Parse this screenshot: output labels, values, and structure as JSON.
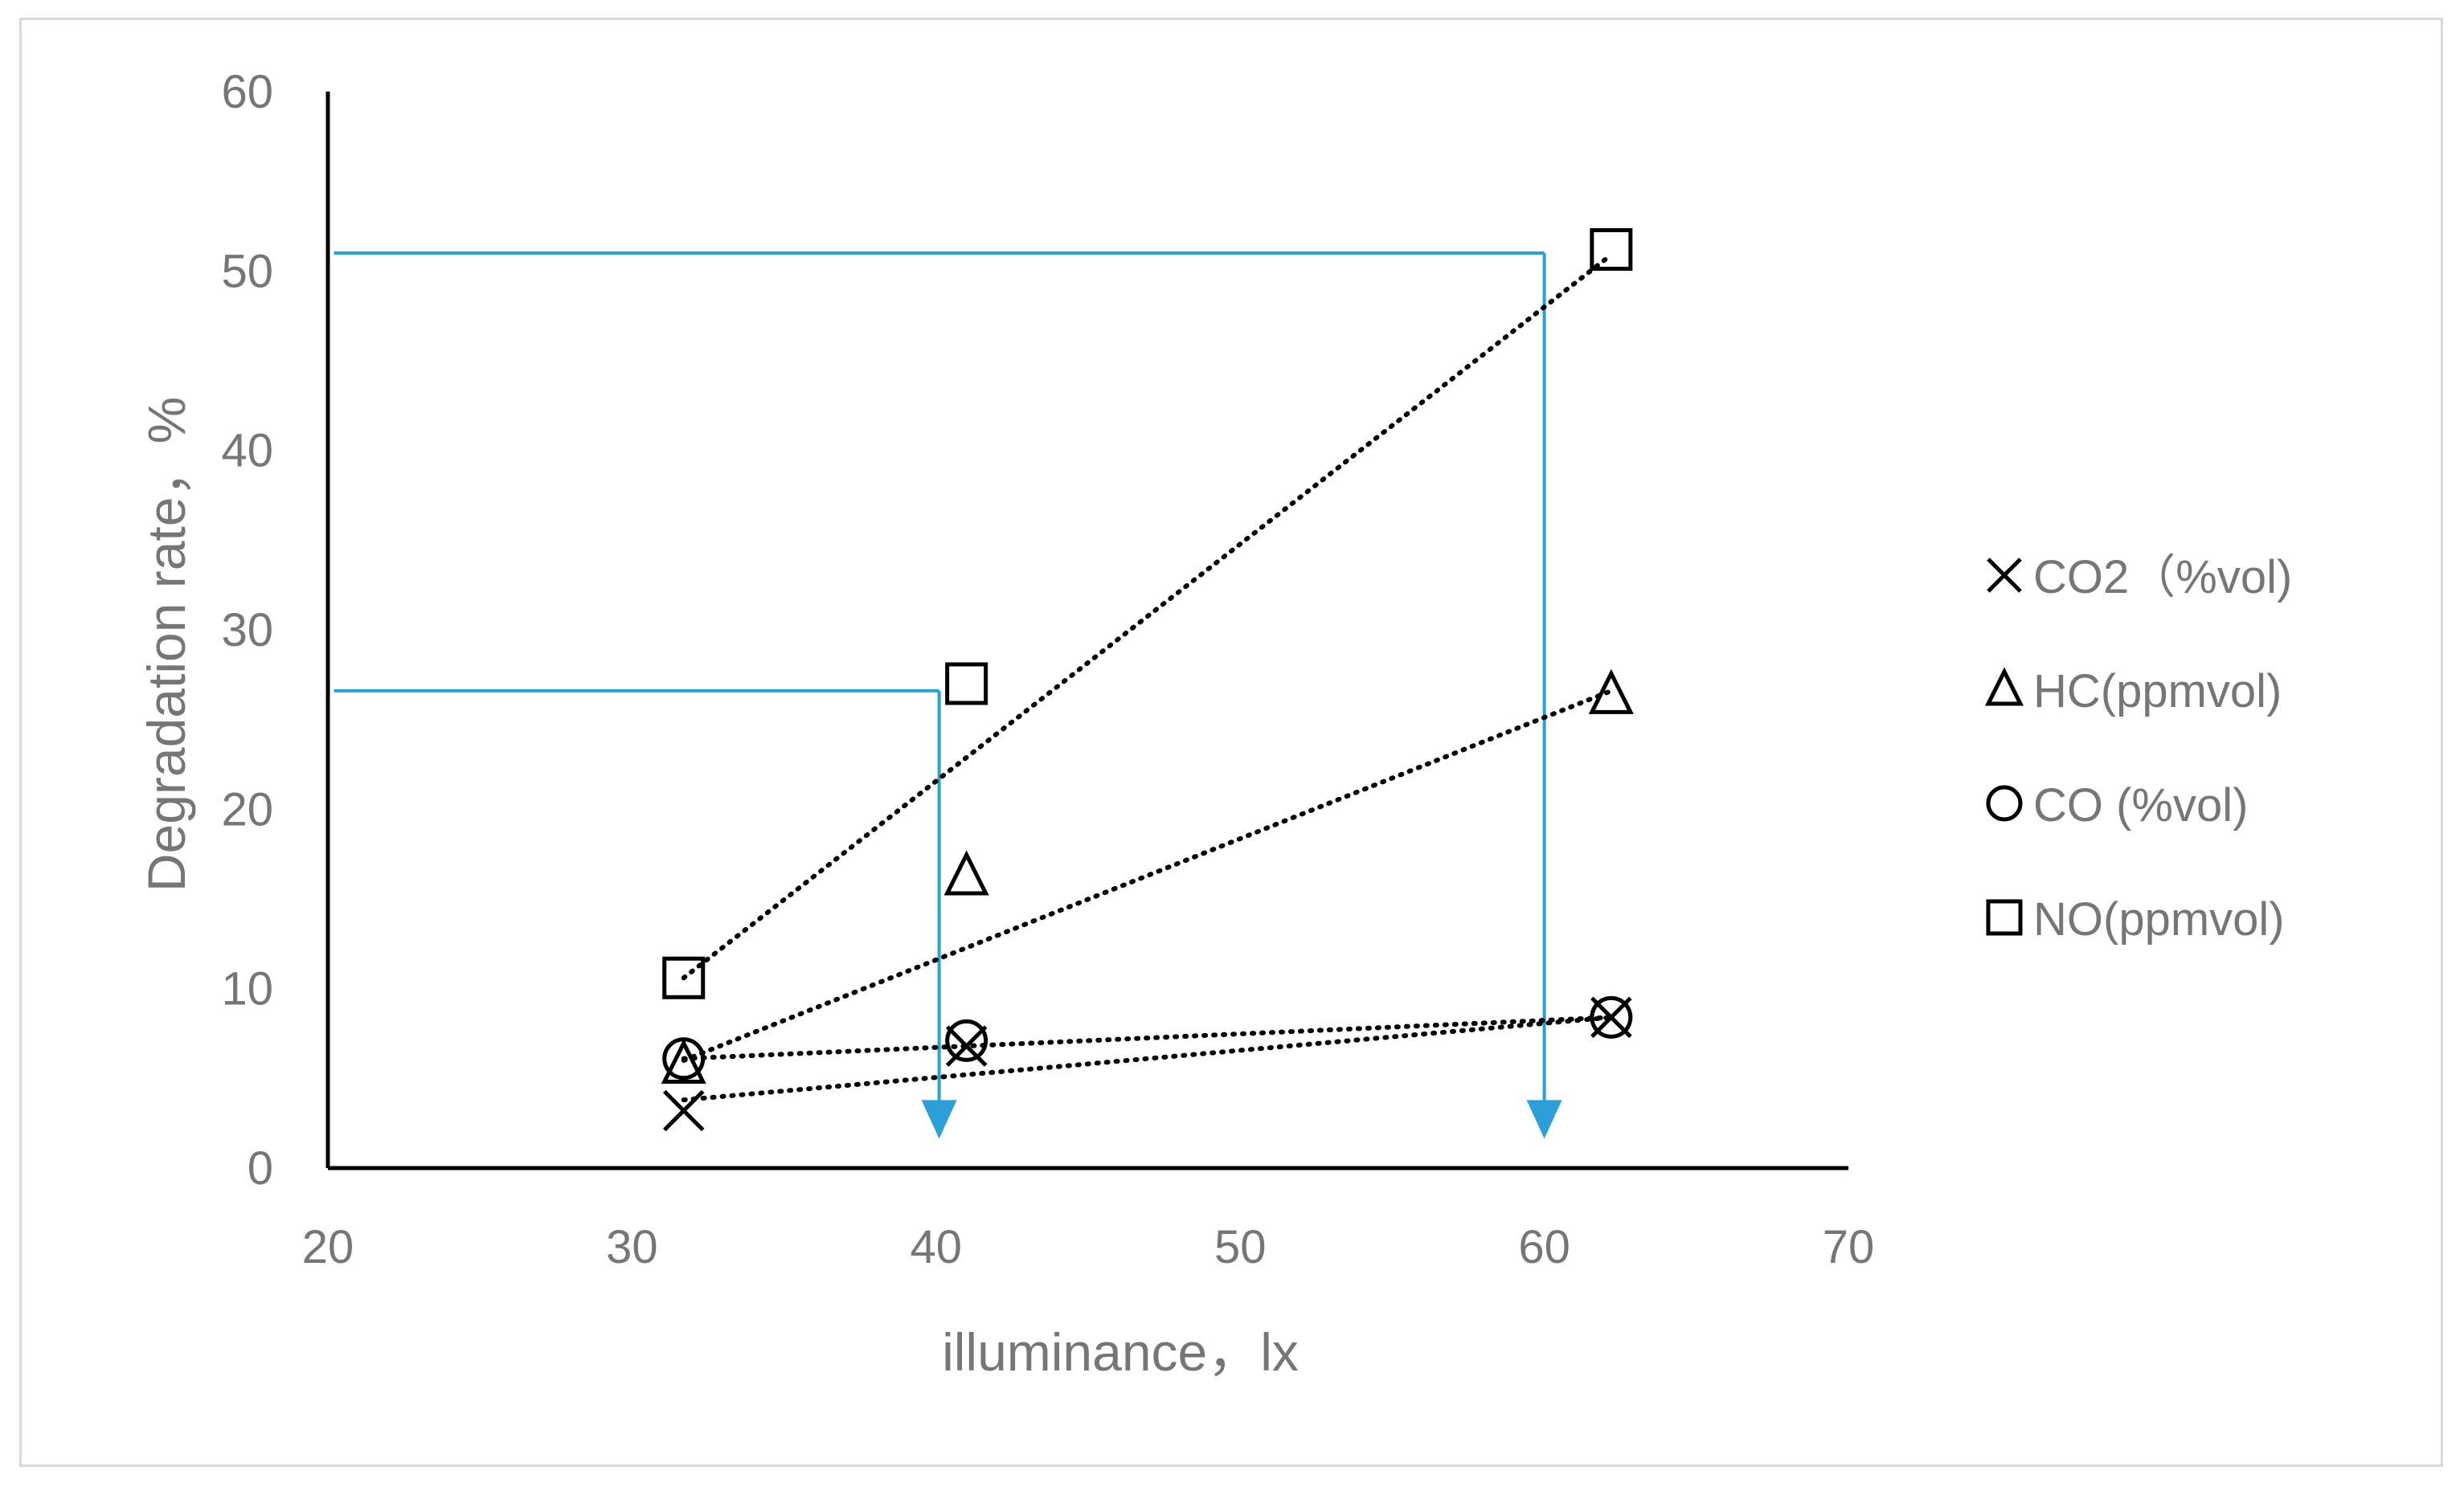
{
  "chart_data": {
    "type": "scatter",
    "title": "",
    "xlabel": "illuminance，lx",
    "ylabel": "Degradation rate，%",
    "xlim": [
      20,
      70
    ],
    "ylim": [
      0,
      60
    ],
    "x_ticks": [
      "20",
      "30",
      "40",
      "50",
      "60",
      "70"
    ],
    "y_ticks": [
      "0",
      "10",
      "20",
      "30",
      "40",
      "50",
      "60"
    ],
    "grid": false,
    "legend_position": "right",
    "trendline_style": "dotted linear",
    "series": [
      {
        "name": "CO2（%vol)",
        "marker": "x",
        "x": [
          31.7,
          41.0,
          62.2
        ],
        "y": [
          3.2,
          6.8,
          8.4
        ],
        "trend_y": [
          3.8,
          8.4
        ]
      },
      {
        "name": "HC(ppmvol)",
        "marker": "triangle",
        "x": [
          31.7,
          41.0,
          62.2
        ],
        "y": [
          5.8,
          16.3,
          26.4
        ],
        "trend_y": [
          6.0,
          26.6
        ]
      },
      {
        "name": "CO (%vol)",
        "marker": "circle",
        "x": [
          31.7,
          41.0,
          62.2
        ],
        "y": [
          6.1,
          7.1,
          8.4
        ],
        "trend_y": [
          6.1,
          8.4
        ]
      },
      {
        "name": "NO(ppmvol)",
        "marker": "square",
        "x": [
          31.7,
          41.0,
          62.2
        ],
        "y": [
          10.6,
          27.0,
          51.2
        ],
        "trend_y": [
          10.6,
          50.9
        ]
      }
    ],
    "annotations": [
      {
        "type": "guide-arrow",
        "color": "#2a9fd8",
        "from_y": 26.6,
        "at_x": 40.1,
        "to_y": 2.0
      },
      {
        "type": "guide-arrow",
        "color": "#2a9fd8",
        "from_y": 51.0,
        "at_x": 60.0,
        "to_y": 2.0
      }
    ],
    "colors": {
      "marker": "#000000",
      "axis": "#000000",
      "text": "#767676",
      "guide": "#2a9fd8"
    }
  }
}
